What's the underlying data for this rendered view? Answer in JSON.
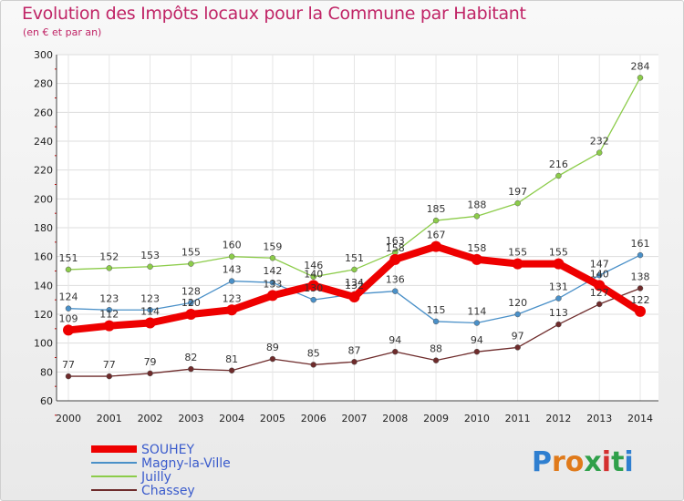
{
  "header": {
    "title": "Evolution des Impôts locaux pour la Commune par Habitant",
    "subtitle": "(en € et par an)"
  },
  "logo": {
    "text": "Proxiti"
  },
  "chart_data": {
    "type": "line",
    "title": "Evolution des Impôts locaux pour la Commune par Habitant",
    "subtitle": "(en € et par an)",
    "x": [
      "2000",
      "2001",
      "2002",
      "2003",
      "2004",
      "2005",
      "2006",
      "2007",
      "2008",
      "2009",
      "2010",
      "2011",
      "2012",
      "2013",
      "2014"
    ],
    "ylim": [
      60,
      300
    ],
    "yticks": [
      60,
      80,
      100,
      120,
      140,
      160,
      180,
      200,
      220,
      240,
      260,
      280,
      300
    ],
    "grid": true,
    "legend_position": "bottom-left",
    "series": [
      {
        "name": "SOUHEY",
        "color": "#ee0000",
        "emphasis": true,
        "values": [
          109,
          112,
          114,
          120,
          123,
          133,
          140,
          132,
          158,
          167,
          158,
          155,
          155,
          140,
          122
        ]
      },
      {
        "name": "Magny-la-Ville",
        "color": "#4a90c8",
        "values": [
          124,
          123,
          123,
          128,
          143,
          142,
          130,
          134,
          136,
          115,
          114,
          120,
          131,
          147,
          161
        ]
      },
      {
        "name": "Juilly",
        "color": "#8ccc4a",
        "values": [
          151,
          152,
          153,
          155,
          160,
          159,
          146,
          151,
          163,
          185,
          188,
          197,
          216,
          232,
          284
        ]
      },
      {
        "name": "Chassey",
        "color": "#6e2b2b",
        "values": [
          77,
          77,
          79,
          82,
          81,
          89,
          85,
          87,
          94,
          88,
          94,
          97,
          113,
          127,
          138
        ]
      }
    ]
  }
}
